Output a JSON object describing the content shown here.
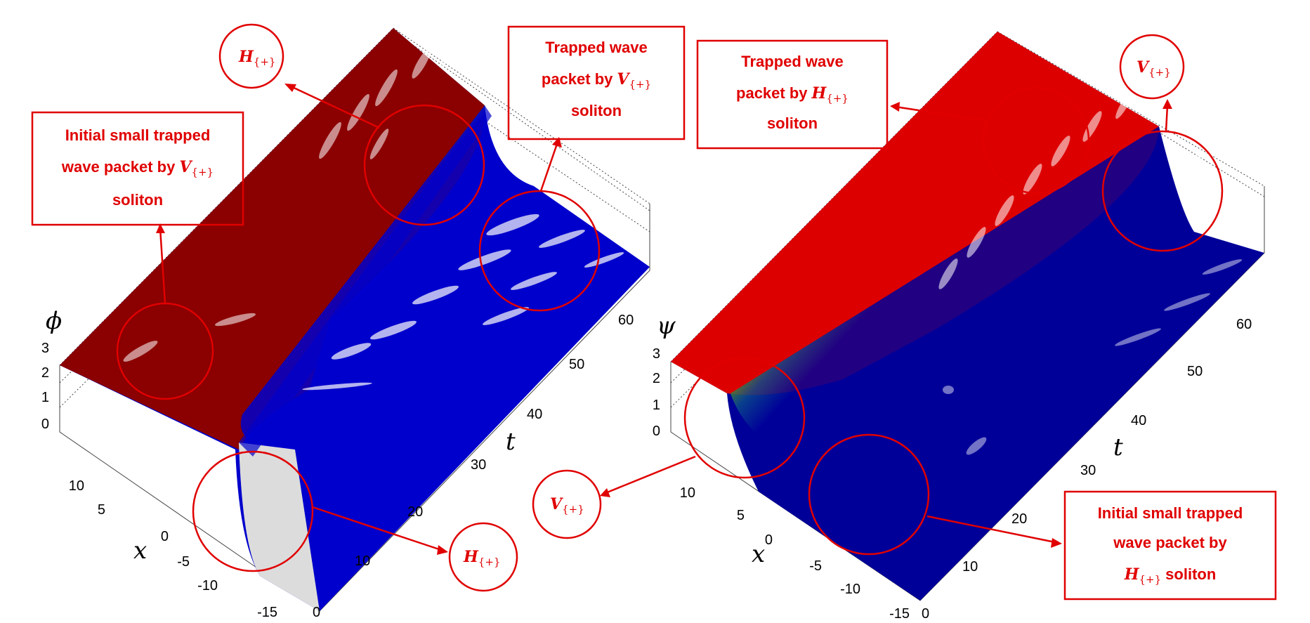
{
  "chart_data": [
    {
      "type": "surface3d",
      "zlabel": "ϕ",
      "xlabel": "x",
      "tlabel": "t",
      "x_ticks": [
        "10",
        "5",
        "0",
        "-5",
        "-10",
        "-15"
      ],
      "t_ticks": [
        "0",
        "10",
        "20",
        "30",
        "40",
        "50",
        "60"
      ],
      "z_ticks": [
        "3",
        "2",
        "1",
        "0"
      ],
      "zlim": [
        0,
        3
      ],
      "colors": {
        "high": "#8b0000",
        "mid": "#6b8e23",
        "low": "#0000cc"
      },
      "annotations": [
        {
          "kind": "circle",
          "base": "H",
          "subscript": "{+}"
        },
        {
          "kind": "box",
          "lines": [
            "Initial small trapped",
            "wave packet by",
            "soliton"
          ],
          "math_base": "V",
          "math_subscript": "{+}"
        },
        {
          "kind": "box",
          "lines": [
            "Trapped wave",
            "packet by",
            "soliton"
          ],
          "math_base": "V",
          "math_subscript": "{+}"
        },
        {
          "kind": "circle",
          "base": "H",
          "subscript": "{+}"
        }
      ]
    },
    {
      "type": "surface3d",
      "zlabel": "ψ",
      "xlabel": "x",
      "tlabel": "t",
      "x_ticks": [
        "10",
        "5",
        "0",
        "-5",
        "-10",
        "-15"
      ],
      "t_ticks": [
        "0",
        "10",
        "20",
        "30",
        "40",
        "50",
        "60"
      ],
      "z_ticks": [
        "3",
        "2",
        "1",
        "0"
      ],
      "zlim": [
        0,
        3
      ],
      "colors": {
        "high": "#dd0000",
        "mid": "#6b8e23",
        "low": "#000099"
      },
      "annotations": [
        {
          "kind": "box",
          "lines": [
            "Trapped wave",
            "packet by",
            "soliton"
          ],
          "math_base": "H",
          "math_subscript": "{+}"
        },
        {
          "kind": "circle",
          "base": "V",
          "subscript": "{+}"
        },
        {
          "kind": "circle",
          "base": "V",
          "subscript": "{+}"
        },
        {
          "kind": "box",
          "lines": [
            "Initial small trapped",
            "wave packet by",
            "soliton"
          ],
          "math_base": "H",
          "math_subscript": "{+}"
        }
      ]
    }
  ]
}
